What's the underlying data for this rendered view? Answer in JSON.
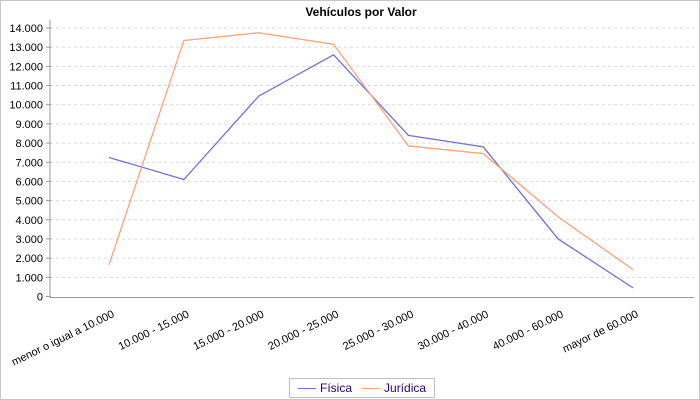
{
  "chart_data": {
    "type": "line",
    "title": "Vehículos por Valor",
    "categories": [
      "menor o igual a 10.000",
      "10.000 - 15.000",
      "15.000 - 20.000",
      "20.000 - 25.000",
      "25.000 - 30.000",
      "30.000 - 40.000",
      "40.000 - 60.000",
      "mayor de 60.000"
    ],
    "series": [
      {
        "name": "Física",
        "color": "#7070db",
        "values": [
          7250,
          6100,
          10450,
          12600,
          8400,
          7800,
          3000,
          450
        ]
      },
      {
        "name": "Jurídica",
        "color": "#ffa077",
        "values": [
          1650,
          13350,
          13750,
          13150,
          7850,
          7450,
          4150,
          1400
        ]
      }
    ],
    "xlabel": "",
    "ylabel": "",
    "ylim": [
      0,
      14000
    ],
    "y_tick_step": 1000,
    "y_tick_labels": [
      "0",
      "1.000",
      "2.000",
      "3.000",
      "4.000",
      "5.000",
      "6.000",
      "7.000",
      "8.000",
      "9.000",
      "10.000",
      "11.000",
      "12.000",
      "13.000",
      "14.000"
    ],
    "grid": "horizontal-dashed",
    "legend_position": "bottom-center"
  },
  "colors": {
    "grid": "#d9d9d9",
    "axis": "#9a9a9a",
    "tick_text": "#000000",
    "legend_text": "#330066",
    "title_text": "#000000",
    "border": "#c6c6c6",
    "background": "#ffffff"
  }
}
